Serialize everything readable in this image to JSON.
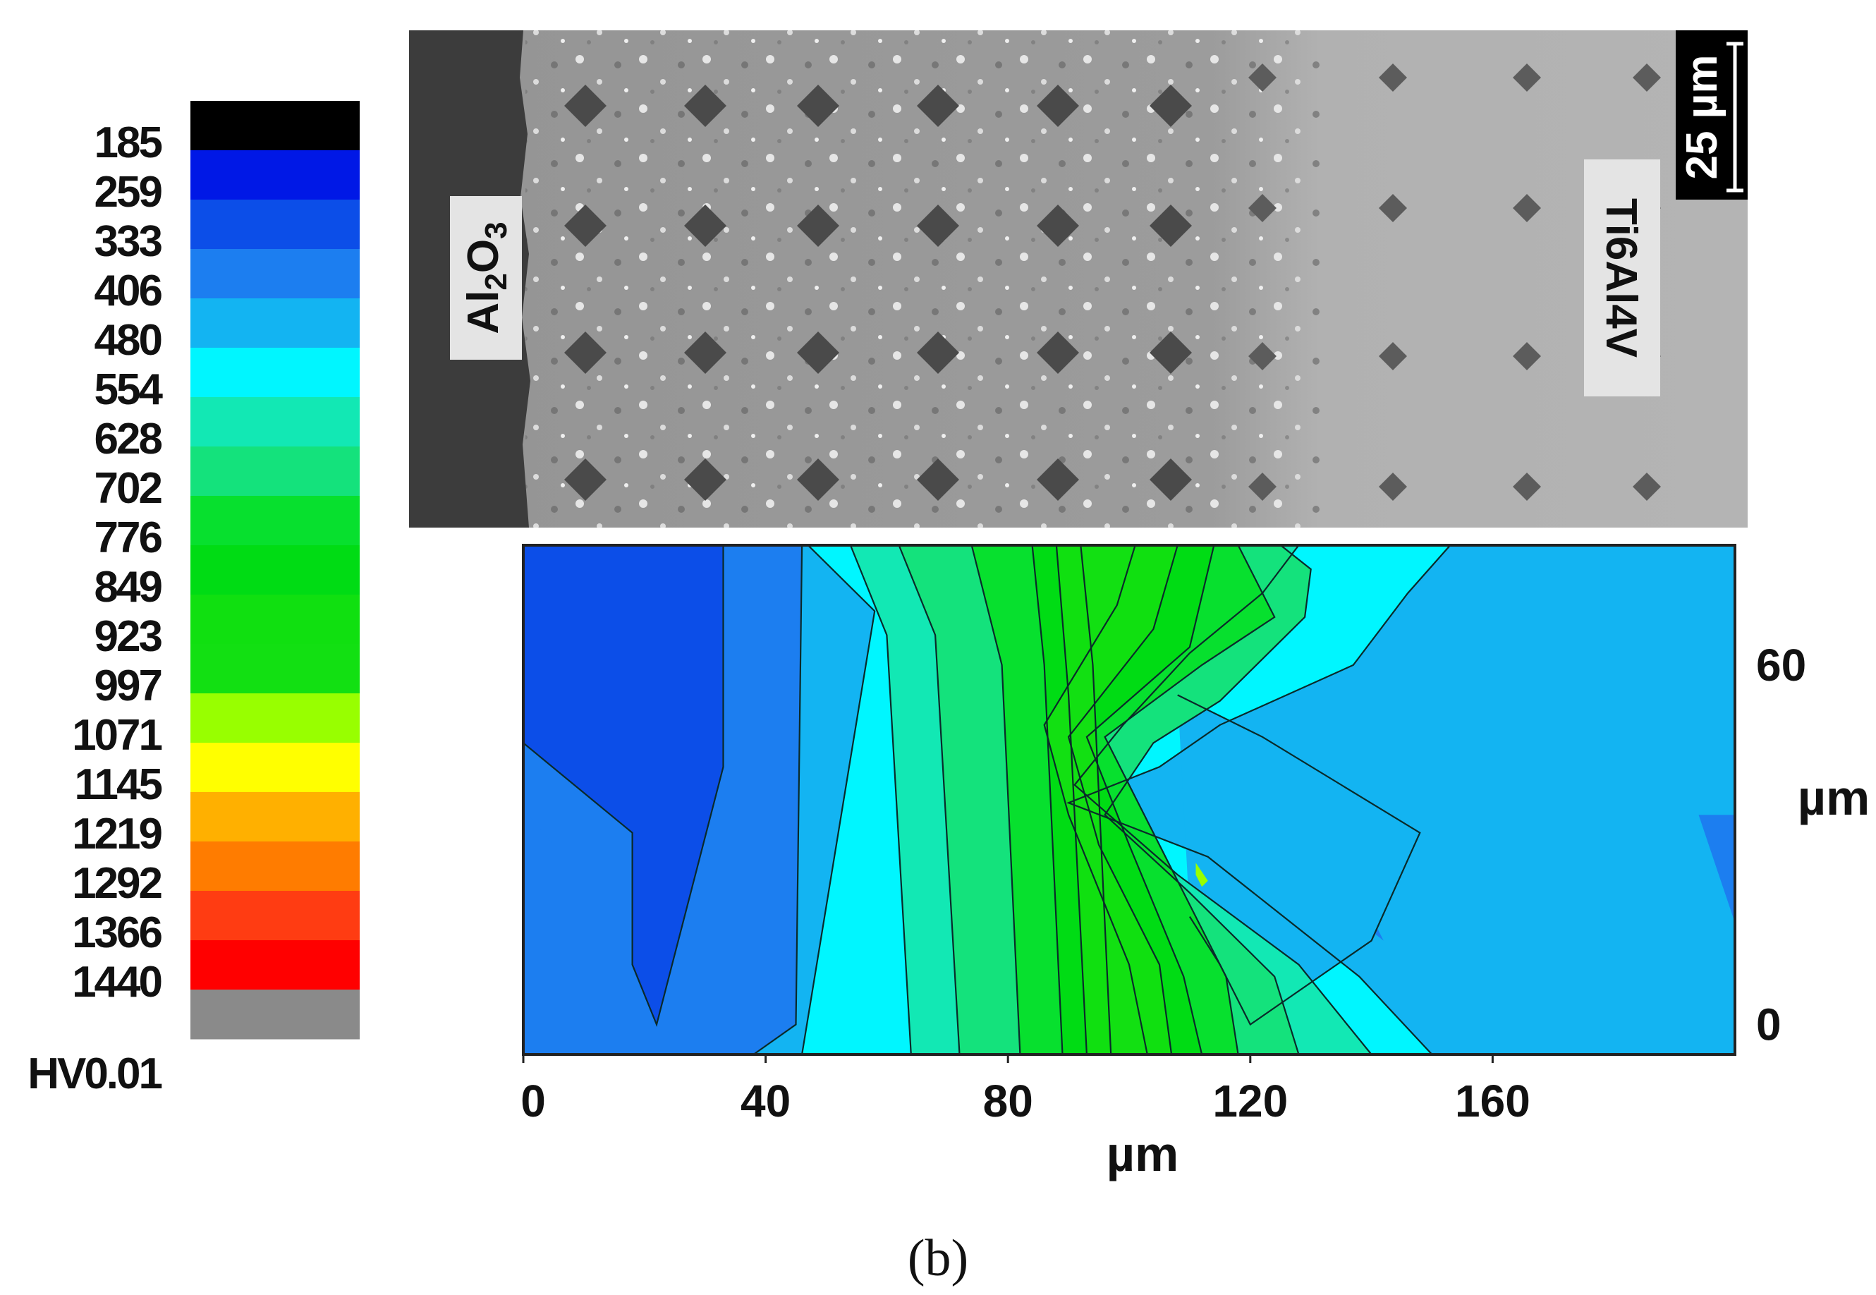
{
  "panel_label": "(b)",
  "micrograph": {
    "label_left": "Al2O3",
    "label_left_parts": [
      "Al",
      "2",
      "O",
      "3"
    ],
    "label_right": "Ti6Al4V",
    "scale_bar": "25 µm"
  },
  "colors": {
    "bands": [
      "#000000",
      "#0018e6",
      "#0c4ee8",
      "#1c7ef0",
      "#13b4f2",
      "#00f6ff",
      "#12e8b4",
      "#14e27c",
      "#07e02e",
      "#00dc14",
      "#10e010",
      "#12e012",
      "#98ff00",
      "#ffff00",
      "#ffb000",
      "#ff7c00",
      "#ff3c12",
      "#ff0000",
      "#8a8a8a"
    ],
    "contour_line": "#0a2a2a",
    "background": "#ffffff"
  },
  "chart_data": {
    "type": "heatmap",
    "subtype": "contour",
    "title": "",
    "xlabel": "µm",
    "ylabel": "µm",
    "xlim": [
      0,
      200
    ],
    "ylim": [
      -5,
      80
    ],
    "x_ticks": [
      "0",
      "40",
      "80",
      "120",
      "160"
    ],
    "x_tick_values": [
      0,
      40,
      80,
      120,
      160
    ],
    "y_ticks": [
      "60",
      "0"
    ],
    "y_tick_values": [
      60,
      0
    ],
    "colorbar": {
      "label": "HV0.01",
      "levels": [
        "185",
        "259",
        "333",
        "406",
        "480",
        "554",
        "628",
        "702",
        "776",
        "849",
        "923",
        "997",
        "1071",
        "1145",
        "1219",
        "1292",
        "1366",
        "1440"
      ]
    },
    "regions": [
      {
        "band": 4,
        "polygon": [
          [
            0,
            -5
          ],
          [
            200,
            -5
          ],
          [
            200,
            80
          ],
          [
            0,
            80
          ]
        ]
      },
      {
        "band": 3,
        "polygon": [
          [
            0,
            -5
          ],
          [
            38,
            -5
          ],
          [
            45,
            0
          ],
          [
            46,
            80
          ],
          [
            0,
            80
          ]
        ]
      },
      {
        "band": 2,
        "polygon": [
          [
            0,
            80
          ],
          [
            33,
            80
          ],
          [
            33,
            43
          ],
          [
            22,
            0
          ],
          [
            18,
            10
          ],
          [
            18,
            32
          ],
          [
            0,
            47
          ]
        ]
      },
      {
        "band": 3,
        "polygon": [
          [
            0,
            36
          ],
          [
            5,
            30
          ],
          [
            5,
            21
          ],
          [
            0,
            20
          ]
        ]
      },
      {
        "band": 3,
        "polygon": [
          [
            124,
            42
          ],
          [
            133,
            32
          ],
          [
            142,
            14
          ],
          [
            132,
            22
          ]
        ]
      },
      {
        "band": 3,
        "polygon": [
          [
            194,
            35
          ],
          [
            200,
            35
          ],
          [
            200,
            17
          ],
          [
            198,
            23
          ]
        ]
      },
      {
        "band": 5,
        "polygon": [
          [
            46,
            -5
          ],
          [
            150,
            -5
          ],
          [
            138,
            8
          ],
          [
            113,
            28
          ],
          [
            90,
            37
          ],
          [
            105,
            43
          ],
          [
            115,
            50
          ],
          [
            137,
            60
          ],
          [
            146,
            72
          ],
          [
            153,
            80
          ],
          [
            47,
            80
          ],
          [
            58,
            69
          ]
        ]
      },
      {
        "band": 4,
        "polygon": [
          [
            108,
            55
          ],
          [
            122,
            48
          ],
          [
            148,
            32
          ],
          [
            140,
            14
          ],
          [
            120,
            0
          ],
          [
            115,
            10
          ],
          [
            110,
            18
          ]
        ]
      },
      {
        "band": 6,
        "polygon": [
          [
            64,
            -5
          ],
          [
            140,
            -5
          ],
          [
            128,
            10
          ],
          [
            108,
            25
          ],
          [
            91,
            40
          ],
          [
            99,
            50
          ],
          [
            110,
            62
          ],
          [
            122,
            72
          ],
          [
            128,
            80
          ],
          [
            54,
            80
          ],
          [
            60,
            65
          ]
        ]
      },
      {
        "band": 7,
        "polygon": [
          [
            72,
            -5
          ],
          [
            128,
            -5
          ],
          [
            124,
            8
          ],
          [
            110,
            22
          ],
          [
            96,
            35
          ],
          [
            104,
            47
          ],
          [
            115,
            54
          ],
          [
            129,
            68
          ],
          [
            130,
            76
          ],
          [
            125,
            80
          ],
          [
            62,
            80
          ],
          [
            68,
            65
          ]
        ]
      },
      {
        "band": 8,
        "polygon": [
          [
            82,
            -5
          ],
          [
            118,
            -5
          ],
          [
            116,
            8
          ],
          [
            106,
            28
          ],
          [
            96,
            48
          ],
          [
            112,
            60
          ],
          [
            124,
            68
          ],
          [
            118,
            80
          ],
          [
            74,
            80
          ],
          [
            79,
            60
          ]
        ]
      },
      {
        "band": 9,
        "polygon": [
          [
            89,
            -5
          ],
          [
            112,
            -5
          ],
          [
            109,
            8
          ],
          [
            100,
            30
          ],
          [
            93,
            48
          ],
          [
            110,
            63
          ],
          [
            114,
            80
          ],
          [
            84,
            80
          ],
          [
            86,
            60
          ]
        ]
      },
      {
        "band": 10,
        "polygon": [
          [
            93,
            -5
          ],
          [
            107,
            -5
          ],
          [
            105,
            10
          ],
          [
            95,
            30
          ],
          [
            90,
            48
          ],
          [
            104,
            66
          ],
          [
            108,
            80
          ],
          [
            88,
            80
          ],
          [
            90,
            55
          ]
        ]
      },
      {
        "band": 11,
        "polygon": [
          [
            97,
            -5
          ],
          [
            103,
            -5
          ],
          [
            100,
            10
          ],
          [
            90,
            35
          ],
          [
            86,
            50
          ],
          [
            98,
            70
          ],
          [
            101,
            80
          ],
          [
            92,
            80
          ],
          [
            94,
            60
          ]
        ]
      },
      {
        "band": 12,
        "polygon": [
          [
            111,
            27
          ],
          [
            113,
            24
          ],
          [
            112,
            23
          ],
          [
            111,
            25
          ]
        ]
      }
    ],
    "contour_lines": [
      [
        [
          46,
          -5
        ],
        [
          58,
          69
        ],
        [
          47,
          80
        ]
      ],
      [
        [
          64,
          -5
        ],
        [
          60,
          65
        ],
        [
          54,
          80
        ]
      ],
      [
        [
          72,
          -5
        ],
        [
          68,
          65
        ],
        [
          62,
          80
        ]
      ],
      [
        [
          82,
          -5
        ],
        [
          79,
          60
        ],
        [
          74,
          80
        ]
      ],
      [
        [
          89,
          -5
        ],
        [
          86,
          60
        ],
        [
          84,
          80
        ]
      ],
      [
        [
          93,
          -5
        ],
        [
          90,
          55
        ],
        [
          88,
          80
        ]
      ],
      [
        [
          97,
          -5
        ],
        [
          94,
          60
        ],
        [
          92,
          80
        ]
      ],
      [
        [
          150,
          -5
        ],
        [
          138,
          8
        ],
        [
          113,
          28
        ],
        [
          90,
          37
        ],
        [
          105,
          43
        ],
        [
          115,
          50
        ],
        [
          137,
          60
        ],
        [
          146,
          72
        ],
        [
          153,
          80
        ]
      ],
      [
        [
          140,
          -5
        ],
        [
          128,
          10
        ],
        [
          108,
          25
        ],
        [
          91,
          40
        ],
        [
          99,
          50
        ],
        [
          110,
          62
        ],
        [
          122,
          72
        ],
        [
          128,
          80
        ]
      ],
      [
        [
          128,
          -5
        ],
        [
          124,
          8
        ],
        [
          110,
          22
        ],
        [
          96,
          35
        ],
        [
          104,
          47
        ],
        [
          115,
          54
        ],
        [
          129,
          68
        ],
        [
          130,
          76
        ],
        [
          125,
          80
        ]
      ],
      [
        [
          118,
          -5
        ],
        [
          116,
          8
        ],
        [
          106,
          28
        ],
        [
          96,
          48
        ],
        [
          112,
          60
        ],
        [
          124,
          68
        ],
        [
          118,
          80
        ]
      ],
      [
        [
          112,
          -5
        ],
        [
          109,
          8
        ],
        [
          100,
          30
        ],
        [
          93,
          48
        ],
        [
          110,
          63
        ],
        [
          114,
          80
        ]
      ],
      [
        [
          107,
          -5
        ],
        [
          105,
          10
        ],
        [
          95,
          30
        ],
        [
          90,
          48
        ],
        [
          104,
          66
        ],
        [
          108,
          80
        ]
      ],
      [
        [
          103,
          -5
        ],
        [
          100,
          10
        ],
        [
          90,
          35
        ],
        [
          86,
          50
        ],
        [
          98,
          70
        ],
        [
          101,
          80
        ]
      ],
      [
        [
          38,
          -5
        ],
        [
          45,
          0
        ],
        [
          46,
          80
        ]
      ],
      [
        [
          33,
          80
        ],
        [
          33,
          43
        ],
        [
          22,
          0
        ],
        [
          18,
          10
        ],
        [
          18,
          32
        ],
        [
          0,
          47
        ]
      ],
      [
        [
          108,
          55
        ],
        [
          122,
          48
        ],
        [
          148,
          32
        ],
        [
          140,
          14
        ],
        [
          120,
          0
        ],
        [
          115,
          10
        ],
        [
          110,
          18
        ]
      ]
    ]
  }
}
